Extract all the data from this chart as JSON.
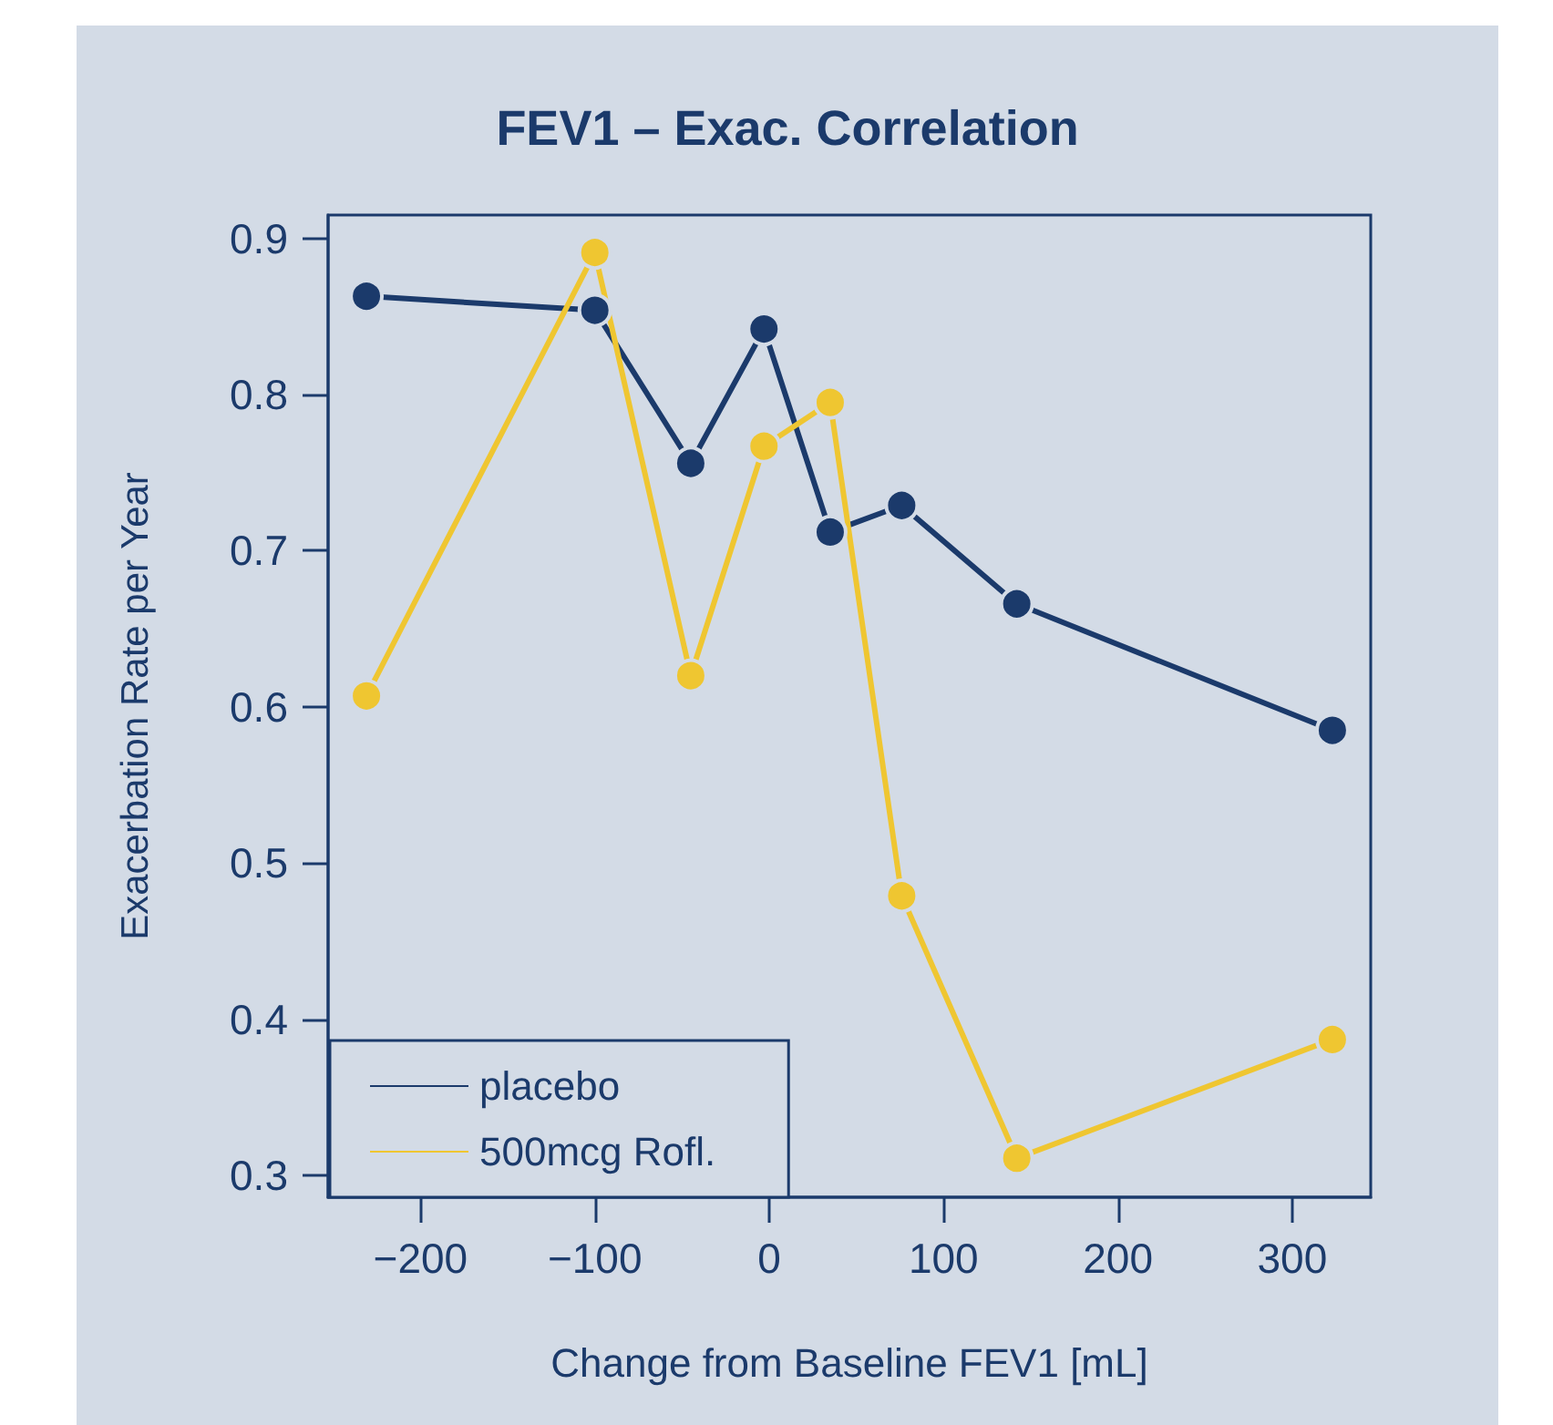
{
  "chart_data": {
    "type": "line",
    "title": "FEV1 – Exac. Correlation",
    "xlabel": "Change from Baseline FEV1 [mL]",
    "ylabel": "Exacerbation Rate per Year",
    "x": [
      -231,
      -100,
      -45,
      -3,
      35,
      76,
      142,
      323
    ],
    "series": [
      {
        "name": "placebo",
        "color": "#1b3a6b",
        "values": [
          0.863,
          0.854,
          0.756,
          0.842,
          0.712,
          0.729,
          0.666,
          0.585
        ]
      },
      {
        "name": "500mcg Rofl.",
        "color": "#efc631",
        "values": [
          0.607,
          0.891,
          0.62,
          0.767,
          0.795,
          0.479,
          0.311,
          0.387
        ]
      }
    ],
    "xlim": [
      -253,
      345
    ],
    "xticks": [
      -200,
      -100,
      0,
      100,
      200,
      300
    ],
    "ylim": [
      0.286,
      0.915
    ],
    "yticks": [
      0.3,
      0.4,
      0.5,
      0.6,
      0.7,
      0.8,
      0.9
    ],
    "grid": false,
    "legend": "bottom left",
    "marker": "circle",
    "line_style": "solid"
  }
}
